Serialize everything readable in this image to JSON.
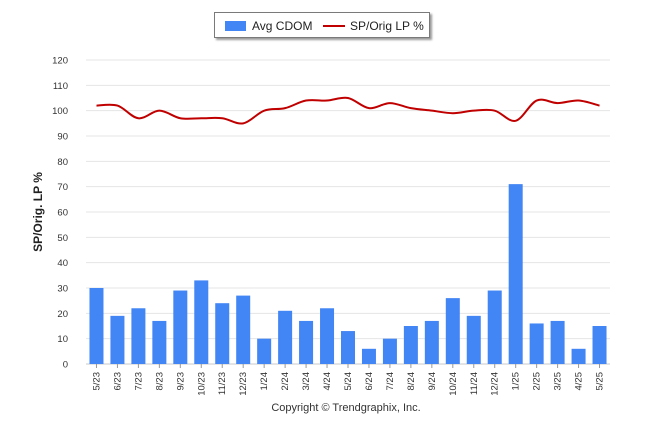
{
  "chart_data": {
    "type": "bar",
    "title": "",
    "xlabel": "",
    "ylabel": "SP/Orig. LP %",
    "ylim": [
      0,
      120
    ],
    "yticks": [
      0,
      10,
      20,
      30,
      40,
      50,
      60,
      70,
      80,
      90,
      100,
      110,
      120
    ],
    "grid": true,
    "legend_position": "top-center",
    "categories": [
      "5/23",
      "6/23",
      "7/23",
      "8/23",
      "9/23",
      "10/23",
      "11/23",
      "12/23",
      "1/24",
      "2/24",
      "3/24",
      "4/24",
      "5/24",
      "6/24",
      "7/24",
      "8/24",
      "9/24",
      "10/24",
      "11/24",
      "12/24",
      "1/25",
      "2/25",
      "3/25",
      "4/25",
      "5/25"
    ],
    "series": [
      {
        "name": "Avg CDOM",
        "type": "bar",
        "color": "#4285f4",
        "values": [
          30,
          19,
          22,
          17,
          29,
          33,
          24,
          27,
          10,
          21,
          17,
          22,
          13,
          6,
          10,
          15,
          17,
          26,
          19,
          29,
          71,
          16,
          17,
          6,
          15
        ]
      },
      {
        "name": "SP/Orig LP %",
        "type": "line",
        "color": "#c00000",
        "values": [
          102,
          102,
          97,
          100,
          97,
          97,
          97,
          95,
          100,
          101,
          104,
          104,
          105,
          101,
          103,
          101,
          100,
          99,
          100,
          100,
          96,
          104,
          103,
          104,
          102
        ]
      }
    ]
  },
  "legend": {
    "bar_label": "Avg CDOM",
    "line_label": "SP/Orig LP %"
  },
  "footer": {
    "copyright": "Copyright © Trendgraphix, Inc."
  }
}
